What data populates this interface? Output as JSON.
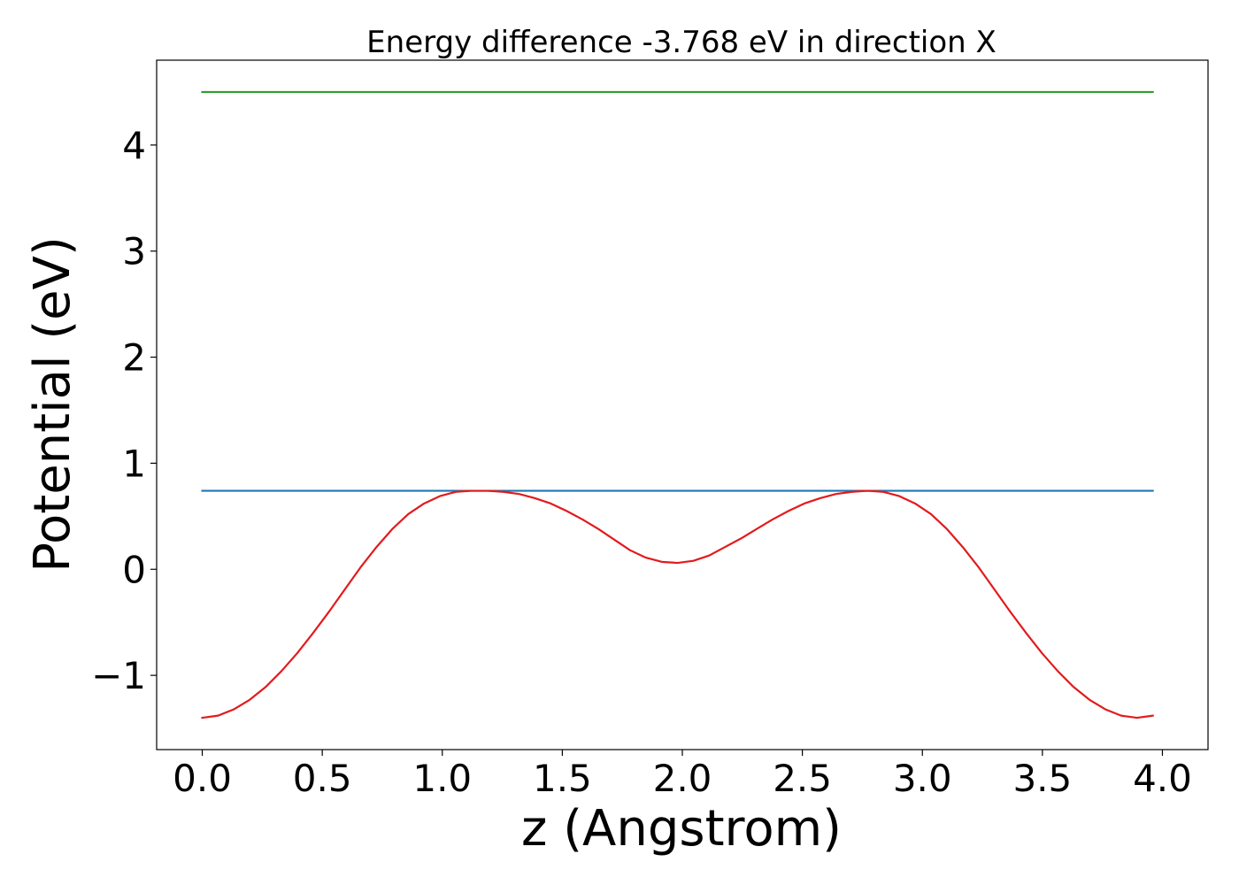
{
  "chart_data": {
    "type": "line",
    "title": "Energy difference -3.768 eV in direction X",
    "xlabel": "z (Angstrom)",
    "ylabel": "Potential (eV)",
    "xlim": [
      -0.19,
      4.19
    ],
    "ylim": [
      -1.7,
      4.8
    ],
    "xticks": [
      0.0,
      0.5,
      1.0,
      1.5,
      2.0,
      2.5,
      3.0,
      3.5,
      4.0
    ],
    "xtick_labels": [
      "0.0",
      "0.5",
      "1.0",
      "1.5",
      "2.0",
      "2.5",
      "3.0",
      "3.5",
      "4.0"
    ],
    "yticks": [
      -1,
      0,
      1,
      2,
      3,
      4
    ],
    "ytick_labels": [
      "−1",
      "0",
      "1",
      "2",
      "3",
      "4"
    ],
    "grid": false,
    "series": [
      {
        "color": "#2ca02c",
        "x": [
          0.0,
          3.96
        ],
        "y": [
          4.5,
          4.5
        ]
      },
      {
        "color": "#1f77b4",
        "x": [
          0.0,
          3.96
        ],
        "y": [
          0.74,
          0.74
        ]
      },
      {
        "color": "#e31a1c",
        "x": [
          0.0,
          0.066,
          0.132,
          0.198,
          0.264,
          0.33,
          0.396,
          0.462,
          0.528,
          0.594,
          0.66,
          0.726,
          0.792,
          0.858,
          0.924,
          0.99,
          1.056,
          1.122,
          1.188,
          1.254,
          1.32,
          1.386,
          1.452,
          1.518,
          1.584,
          1.65,
          1.716,
          1.782,
          1.848,
          1.914,
          1.98,
          2.046,
          2.112,
          2.178,
          2.244,
          2.31,
          2.376,
          2.442,
          2.508,
          2.574,
          2.64,
          2.706,
          2.772,
          2.838,
          2.904,
          2.97,
          3.036,
          3.102,
          3.168,
          3.234,
          3.3,
          3.366,
          3.432,
          3.498,
          3.564,
          3.63,
          3.696,
          3.762,
          3.828,
          3.894,
          3.96
        ],
        "y": [
          -1.4,
          -1.38,
          -1.32,
          -1.23,
          -1.11,
          -0.96,
          -0.79,
          -0.6,
          -0.4,
          -0.19,
          0.02,
          0.21,
          0.38,
          0.52,
          0.62,
          0.69,
          0.73,
          0.74,
          0.74,
          0.73,
          0.71,
          0.67,
          0.62,
          0.55,
          0.47,
          0.38,
          0.28,
          0.18,
          0.11,
          0.07,
          0.06,
          0.08,
          0.13,
          0.21,
          0.29,
          0.38,
          0.47,
          0.55,
          0.62,
          0.67,
          0.71,
          0.73,
          0.74,
          0.73,
          0.69,
          0.62,
          0.52,
          0.38,
          0.21,
          0.02,
          -0.19,
          -0.4,
          -0.6,
          -0.79,
          -0.96,
          -1.11,
          -1.23,
          -1.32,
          -1.38,
          -1.4,
          -1.38
        ]
      }
    ]
  }
}
